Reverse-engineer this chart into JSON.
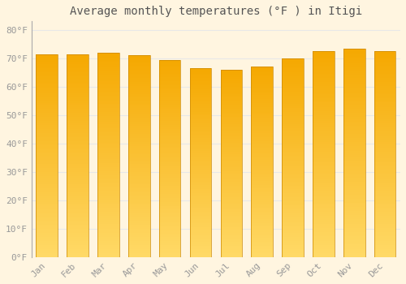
{
  "title": "Average monthly temperatures (°F ) in Itigi",
  "months": [
    "Jan",
    "Feb",
    "Mar",
    "Apr",
    "May",
    "Jun",
    "Jul",
    "Aug",
    "Sep",
    "Oct",
    "Nov",
    "Dec"
  ],
  "values": [
    71.5,
    71.5,
    72.0,
    71.0,
    69.5,
    66.5,
    66.0,
    67.0,
    70.0,
    72.5,
    73.5,
    72.5
  ],
  "bar_color_top": "#F5A800",
  "bar_color_bottom": "#FFD966",
  "background_color": "#FFF5E0",
  "grid_color": "#E8E8E8",
  "yticks": [
    0,
    10,
    20,
    30,
    40,
    50,
    60,
    70,
    80
  ],
  "ylim": [
    0,
    83
  ],
  "title_fontsize": 10,
  "tick_fontsize": 8,
  "tick_color": "#999999",
  "title_color": "#555555",
  "bar_width": 0.7,
  "bar_edge_color": "#CC8800"
}
